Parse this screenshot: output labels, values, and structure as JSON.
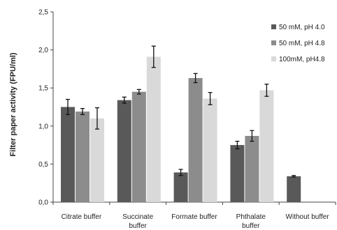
{
  "chart_data": {
    "type": "bar",
    "title": "",
    "xlabel": "",
    "ylabel": "Filter paper activity (FPU/ml)",
    "ylim": [
      0,
      2.5
    ],
    "yticks": [
      "0,0",
      "0,5",
      "1,0",
      "1,5",
      "2,0",
      "2,5"
    ],
    "ytick_values": [
      0,
      0.5,
      1.0,
      1.5,
      2.0,
      2.5
    ],
    "grid": false,
    "legend_position": "top-right",
    "categories": [
      [
        "Citrate buffer"
      ],
      [
        "Succinate",
        "buffer"
      ],
      [
        "Formate buffer"
      ],
      [
        "Phthalate",
        "buffer"
      ],
      [
        "Without buffer"
      ]
    ],
    "series": [
      {
        "name": "50 mM, pH 4.0",
        "color": "#595959",
        "values": [
          1.25,
          1.34,
          0.39,
          0.75,
          0.34
        ],
        "errors": [
          0.1,
          0.04,
          0.04,
          0.05,
          0.01
        ]
      },
      {
        "name": "50 mM, pH 4.8",
        "color": "#8c8c8c",
        "values": [
          1.19,
          1.45,
          1.63,
          0.87,
          null
        ],
        "errors": [
          0.04,
          0.03,
          0.06,
          0.07,
          null
        ]
      },
      {
        "name": "100mM, pH4.8",
        "color": "#d9d9d9",
        "values": [
          1.1,
          1.91,
          1.36,
          1.47,
          null
        ],
        "errors": [
          0.14,
          0.14,
          0.08,
          0.08,
          null
        ]
      }
    ]
  }
}
